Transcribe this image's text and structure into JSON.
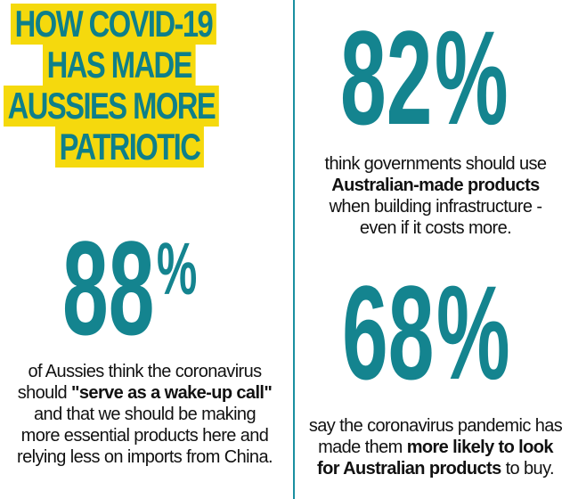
{
  "title": {
    "line1": "HOW COVID-19",
    "line2": "HAS MADE",
    "line3": "AUSSIES MORE",
    "line4": "PATRIOTIC"
  },
  "stat_82": {
    "value": "82",
    "unit": "%",
    "text1": "think governments should use",
    "bold": "Australian-made products",
    "text2": "when building infrastructure -",
    "text3": "even if it costs more."
  },
  "stat_88": {
    "value": "88",
    "unit": "%",
    "text1": "of Aussies think the coronavirus",
    "text2a": "should ",
    "bold": "\"serve as a wake-up call\"",
    "text3": "and that we should be making",
    "text4": "more essential products here and",
    "text5": "relying less on imports from China."
  },
  "stat_68": {
    "value": "68",
    "unit": "%",
    "text1": "say the coronavirus pandemic has",
    "text2a": "made them ",
    "bold1": "more likely to look",
    "bold2": "for Australian products",
    "text3b": " to buy."
  },
  "colors": {
    "teal": "#14848f",
    "yellow": "#f5d90d",
    "divider": "#1a8fa0"
  }
}
